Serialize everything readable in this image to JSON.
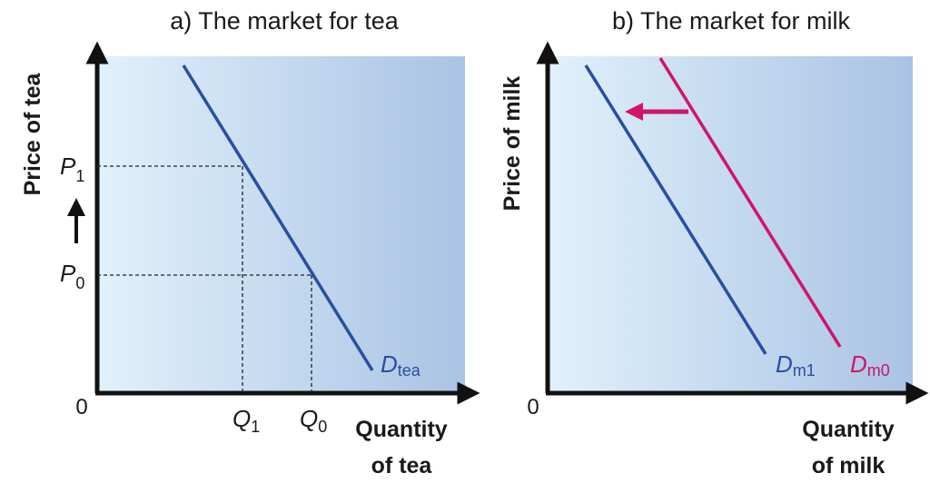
{
  "panels": [
    {
      "title": "a) The market for tea",
      "y_axis_label": "Price of tea",
      "x_axis_label": [
        "Quantity",
        "of tea"
      ],
      "origin": "0",
      "price_labels": [
        {
          "symbol": "P",
          "sub": "1"
        },
        {
          "symbol": "P",
          "sub": "0"
        }
      ],
      "quantity_labels": [
        {
          "symbol": "Q",
          "sub": "1"
        },
        {
          "symbol": "Q",
          "sub": "0"
        }
      ],
      "curves": [
        {
          "symbol": "D",
          "sub": "tea"
        }
      ]
    },
    {
      "title": "b) The market for milk",
      "y_axis_label": "Price of milk",
      "x_axis_label": [
        "Quantity",
        "of milk"
      ],
      "origin": "0",
      "curves": [
        {
          "symbol": "D",
          "sub": "m1"
        },
        {
          "symbol": "D",
          "sub": "m0"
        }
      ]
    }
  ]
}
